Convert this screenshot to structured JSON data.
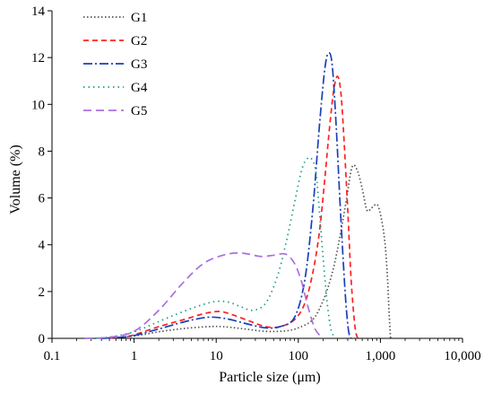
{
  "chart_data": {
    "type": "line",
    "xlabel": "Particle size (μm)",
    "ylabel": "Volume  (%)",
    "x_scale": "log",
    "xlim": [
      0.1,
      10000
    ],
    "ylim": [
      0,
      14
    ],
    "x_ticks": [
      {
        "value": 0.1,
        "label": "0.1"
      },
      {
        "value": 1,
        "label": "1"
      },
      {
        "value": 10,
        "label": "10"
      },
      {
        "value": 100,
        "label": "100"
      },
      {
        "value": 1000,
        "label": "1,000"
      },
      {
        "value": 10000,
        "label": "10,000"
      }
    ],
    "y_ticks": [
      {
        "value": 0,
        "label": "0"
      },
      {
        "value": 2,
        "label": "2"
      },
      {
        "value": 4,
        "label": "4"
      },
      {
        "value": 6,
        "label": "6"
      },
      {
        "value": 8,
        "label": "8"
      },
      {
        "value": 10,
        "label": "10"
      },
      {
        "value": 12,
        "label": "12"
      },
      {
        "value": 14,
        "label": "14"
      }
    ],
    "grid": false,
    "legend_position": "top-left",
    "series": [
      {
        "name": "G1",
        "color": "#555555",
        "dash": "1.5,2.5",
        "points": [
          [
            0.3,
            0
          ],
          [
            0.5,
            0.02
          ],
          [
            1,
            0.1
          ],
          [
            2,
            0.28
          ],
          [
            4,
            0.42
          ],
          [
            8,
            0.5
          ],
          [
            12,
            0.5
          ],
          [
            20,
            0.42
          ],
          [
            40,
            0.3
          ],
          [
            70,
            0.32
          ],
          [
            100,
            0.45
          ],
          [
            150,
            0.8
          ],
          [
            200,
            1.6
          ],
          [
            250,
            2.6
          ],
          [
            300,
            3.8
          ],
          [
            380,
            5.8
          ],
          [
            450,
            7.3
          ],
          [
            520,
            7.2
          ],
          [
            600,
            6.4
          ],
          [
            680,
            5.5
          ],
          [
            750,
            5.5
          ],
          [
            850,
            5.7
          ],
          [
            950,
            5.6
          ],
          [
            1100,
            4.5
          ],
          [
            1200,
            3.0
          ],
          [
            1280,
            1.0
          ],
          [
            1330,
            0
          ]
        ]
      },
      {
        "name": "G2",
        "color": "#ff2020",
        "dash": "6,4",
        "points": [
          [
            0.4,
            0
          ],
          [
            0.7,
            0.05
          ],
          [
            1,
            0.15
          ],
          [
            2,
            0.5
          ],
          [
            4,
            0.8
          ],
          [
            7,
            1.05
          ],
          [
            11,
            1.15
          ],
          [
            16,
            1.0
          ],
          [
            25,
            0.75
          ],
          [
            40,
            0.5
          ],
          [
            60,
            0.5
          ],
          [
            90,
            0.8
          ],
          [
            120,
            1.5
          ],
          [
            150,
            2.8
          ],
          [
            180,
            4.5
          ],
          [
            210,
            6.8
          ],
          [
            240,
            9.0
          ],
          [
            270,
            10.6
          ],
          [
            300,
            11.2
          ],
          [
            330,
            10.5
          ],
          [
            360,
            8.5
          ],
          [
            400,
            5.5
          ],
          [
            440,
            2.5
          ],
          [
            490,
            0.5
          ],
          [
            530,
            0
          ]
        ]
      },
      {
        "name": "G3",
        "color": "#1a3fb8",
        "dash": "10,3,2,3",
        "points": [
          [
            0.4,
            0
          ],
          [
            0.7,
            0.05
          ],
          [
            1,
            0.12
          ],
          [
            2,
            0.4
          ],
          [
            4,
            0.7
          ],
          [
            7,
            0.88
          ],
          [
            10,
            0.9
          ],
          [
            15,
            0.8
          ],
          [
            25,
            0.6
          ],
          [
            40,
            0.45
          ],
          [
            60,
            0.5
          ],
          [
            90,
            0.9
          ],
          [
            120,
            2.5
          ],
          [
            150,
            5.5
          ],
          [
            180,
            9.0
          ],
          [
            210,
            11.5
          ],
          [
            235,
            12.2
          ],
          [
            260,
            11.6
          ],
          [
            290,
            9.0
          ],
          [
            320,
            6.0
          ],
          [
            350,
            3.5
          ],
          [
            380,
            1.5
          ],
          [
            410,
            0.3
          ],
          [
            440,
            0
          ]
        ]
      },
      {
        "name": "G4",
        "color": "#1a9c8a",
        "dash": "1.5,4",
        "points": [
          [
            0.3,
            0
          ],
          [
            0.5,
            0.05
          ],
          [
            1,
            0.28
          ],
          [
            2,
            0.72
          ],
          [
            4,
            1.15
          ],
          [
            7,
            1.45
          ],
          [
            10,
            1.58
          ],
          [
            14,
            1.55
          ],
          [
            20,
            1.35
          ],
          [
            28,
            1.2
          ],
          [
            40,
            1.5
          ],
          [
            55,
            2.6
          ],
          [
            70,
            4.0
          ],
          [
            90,
            5.8
          ],
          [
            110,
            7.2
          ],
          [
            130,
            7.7
          ],
          [
            150,
            7.6
          ],
          [
            165,
            7.0
          ],
          [
            180,
            5.5
          ],
          [
            200,
            3.5
          ],
          [
            225,
            1.5
          ],
          [
            250,
            0.4
          ],
          [
            280,
            0
          ]
        ]
      },
      {
        "name": "G5",
        "color": "#a970e0",
        "dash": "9,5",
        "points": [
          [
            0.25,
            0
          ],
          [
            0.5,
            0.05
          ],
          [
            1,
            0.3
          ],
          [
            2,
            1.2
          ],
          [
            4,
            2.4
          ],
          [
            7,
            3.2
          ],
          [
            12,
            3.55
          ],
          [
            18,
            3.65
          ],
          [
            25,
            3.6
          ],
          [
            35,
            3.5
          ],
          [
            50,
            3.55
          ],
          [
            70,
            3.6
          ],
          [
            90,
            3.2
          ],
          [
            110,
            2.4
          ],
          [
            130,
            1.4
          ],
          [
            160,
            0.4
          ],
          [
            200,
            0
          ]
        ]
      }
    ]
  }
}
